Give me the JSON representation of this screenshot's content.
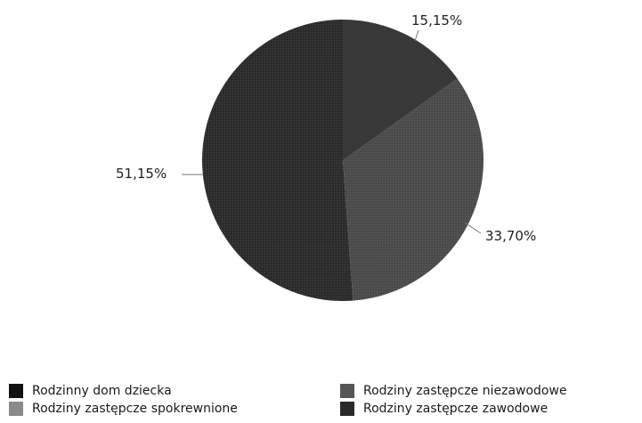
{
  "chart_data": {
    "type": "pie",
    "slices": [
      {
        "label": "Rodzinny dom dziecka",
        "value": 0,
        "value_label": "",
        "color": "#161616",
        "pattern": false
      },
      {
        "label": "Rodziny zastępcze spokrewnione",
        "value": 51.15,
        "value_label": "51,15%",
        "color": "#2c2c2c",
        "pattern": true
      },
      {
        "label": "Rodziny zastępcze niezawodowe",
        "value": 33.7,
        "value_label": "33,70%",
        "color": "#4b4b4b",
        "pattern": true
      },
      {
        "label": "Rodziny zastępcze zawodowe",
        "value": 15.15,
        "value_label": "15,15%",
        "color": "#383838",
        "pattern": false
      }
    ],
    "legend": [
      {
        "label": "Rodzinny dom dziecka",
        "color": "#111111"
      },
      {
        "label": "Rodziny zastępcze niezawodowe",
        "color": "#555555"
      },
      {
        "label": "Rodziny zastępcze spokrewnione",
        "color": "#8a8a8a"
      },
      {
        "label": "Rodziny zastępcze zawodowe",
        "color": "#2a2a2a"
      }
    ],
    "legend_position": "bottom"
  }
}
